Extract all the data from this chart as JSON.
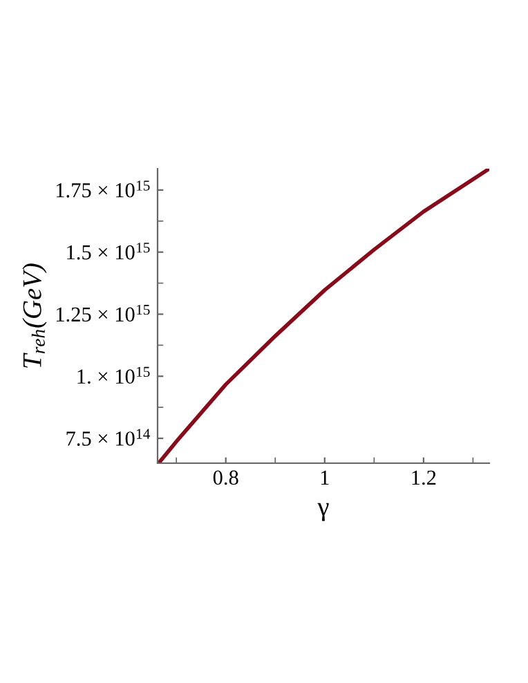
{
  "chart_data": {
    "type": "line",
    "xlabel": "γ",
    "ylabel": "T$_{reh}$(GeV)",
    "x": [
      0.667,
      0.7,
      0.8,
      0.9,
      1.0,
      1.1,
      1.2,
      1.333
    ],
    "series": [
      {
        "color": "#8b0a1a",
        "values": [
          657000000000000.0,
          737000000000000.0,
          967000000000000.0,
          1162000000000000.0,
          1347000000000000.0,
          1510000000000000.0,
          1663000000000000.0,
          1836000000000000.0
        ]
      }
    ],
    "xlim": [
      0.662,
      1.333
    ],
    "ylim": [
      650000000000000.0,
      1836000000000000.0
    ],
    "xticks": [
      0.8,
      1,
      1.2
    ],
    "yticks": [
      {
        "value": 750000000000000.0,
        "label": "7.5 × 10$^{14}$"
      },
      {
        "value": 1000000000000000.0,
        "label": "1. × 10$^{15}$"
      },
      {
        "value": 1250000000000000.0,
        "label": "1.25 × 10$^{15}$"
      },
      {
        "value": 1500000000000000.0,
        "label": "1.5 × 10$^{15}$"
      },
      {
        "value": 1750000000000000.0,
        "label": "1.75 × 10$^{15}$"
      }
    ],
    "grid": false,
    "legend": false,
    "marker": "none",
    "line_style": "solid"
  }
}
